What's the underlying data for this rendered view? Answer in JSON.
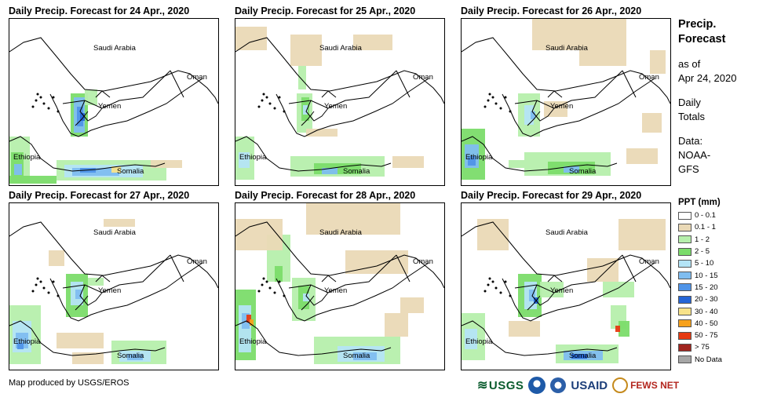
{
  "panels": [
    {
      "title": "Daily Precip. Forecast for 24 Apr., 2020",
      "day": 24,
      "labels": {
        "saudi": "Saudi Arabia",
        "oman": "Oman",
        "yemen": "Yemen",
        "ethiopia": "Ethiopia",
        "somalia": "Somalia"
      }
    },
    {
      "title": "Daily Precip. Forecast for 25 Apr., 2020",
      "day": 25,
      "labels": {
        "saudi": "Saudi Arabia",
        "oman": "Oman",
        "yemen": "Yemen",
        "ethiopia": "Ethiopia",
        "somalia": "Somalia"
      }
    },
    {
      "title": "Daily Precip. Forecast for 26 Apr., 2020",
      "day": 26,
      "labels": {
        "saudi": "Saudi Arabia",
        "oman": "Oman",
        "yemen": "Yemen",
        "ethiopia": "Ethiopia",
        "somalia": "Somalia"
      }
    },
    {
      "title": "Daily Precip. Forecast for 27 Apr., 2020",
      "day": 27,
      "labels": {
        "saudi": "Saudi Arabia",
        "oman": "Oman",
        "yemen": "Yemen",
        "ethiopia": "Ethiopia",
        "somalia": "Somalia"
      }
    },
    {
      "title": "Daily Precip. Forecast for 28 Apr., 2020",
      "day": 28,
      "labels": {
        "saudi": "Saudi Arabia",
        "oman": "Oman",
        "yemen": "Yemen",
        "ethiopia": "Ethiopia",
        "somalia": "Somalia"
      }
    },
    {
      "title": "Daily Precip. Forecast for 29 Apr., 2020",
      "day": 29,
      "labels": {
        "saudi": "Saudi Arabia",
        "oman": "Oman",
        "yemen": "Yemen",
        "ethiopia": "Ethiopia",
        "somalia": "Somalia"
      }
    }
  ],
  "sidebar": {
    "title_line1": "Precip.",
    "title_line2": "Forecast",
    "asof_line1": "as of",
    "asof_line2": "Apr 24, 2020",
    "totals_line1": "Daily",
    "totals_line2": "Totals",
    "data_line1": "Data:",
    "data_line2": "NOAA-",
    "data_line3": "GFS"
  },
  "legend": {
    "title": "PPT (mm)",
    "items": [
      {
        "label": "0 - 0.1",
        "color": "#ffffff"
      },
      {
        "label": "0.1 - 1",
        "color": "#ead9b6"
      },
      {
        "label": "1 - 2",
        "color": "#b6efac"
      },
      {
        "label": "2 - 5",
        "color": "#7bdc6a"
      },
      {
        "label": "5 - 10",
        "color": "#b4e4f6"
      },
      {
        "label": "10 - 15",
        "color": "#7fbdf0"
      },
      {
        "label": "15 - 20",
        "color": "#4f94e8"
      },
      {
        "label": "20 - 30",
        "color": "#2565d6"
      },
      {
        "label": "30 - 40",
        "color": "#f8e38a"
      },
      {
        "label": "40 - 50",
        "color": "#f7a11b"
      },
      {
        "label": "50 - 75",
        "color": "#e63a12"
      },
      {
        "label": "> 75",
        "color": "#a0241e"
      },
      {
        "label": "No Data",
        "color": "#a6a6a6"
      }
    ]
  },
  "credit": "Map produced by USGS/EROS",
  "logos": {
    "usgs": "USGS",
    "usaid": "USAID",
    "fews": "FEWS NET"
  }
}
